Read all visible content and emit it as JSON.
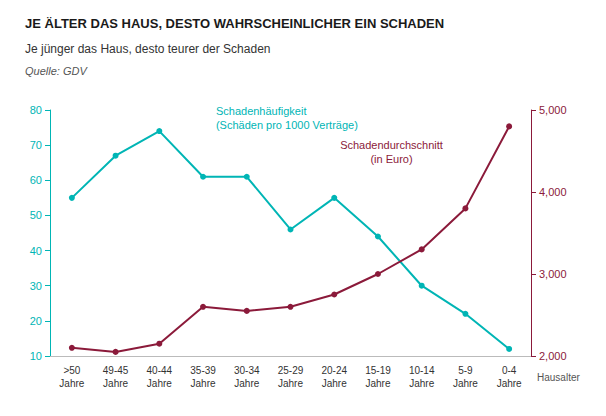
{
  "chart_data": {
    "type": "line",
    "title": "JE ÄLTER DAS HAUS, DESTO WAHRSCHEINLICHER EIN SCHADEN",
    "subtitle": "Je jünger das Haus, desto teurer der Schaden",
    "source": "Quelle: GDV",
    "xlabel": "Hausalter",
    "categories": [
      ">50\nJahre",
      "49-45\nJahre",
      "40-44\nJahre",
      "35-39\nJahre",
      "30-34\nJahre",
      "25-29\nJahre",
      "20-24\nJahre",
      "15-19\nJahre",
      "10-14\nJahre",
      "5-9\nJahre",
      "0-4\nJahre"
    ],
    "series": [
      {
        "values": [
          55,
          67,
          74,
          61,
          61,
          46,
          55,
          44,
          30,
          22,
          12
        ],
        "color": "#00B5B5",
        "axis": "y",
        "marker": "circle"
      },
      {
        "values": [
          2100,
          2050,
          2150,
          2600,
          2550,
          2600,
          2750,
          3000,
          3300,
          3800,
          4800
        ],
        "color": "#8B1A3A",
        "axis": "y2",
        "marker": "circle"
      }
    ],
    "annotations": [
      "Schadenhäufigkeit\n(Schäden pro 1000 Verträge)",
      "Schadendurchschnitt\n(in Euro)"
    ],
    "ylim": [
      10,
      80
    ],
    "yticks": [
      10,
      20,
      30,
      40,
      50,
      60,
      70,
      80
    ],
    "y2lim": [
      2000,
      5000
    ],
    "y2ticks": [
      2000,
      3000,
      4000,
      5000
    ],
    "grid": false
  }
}
